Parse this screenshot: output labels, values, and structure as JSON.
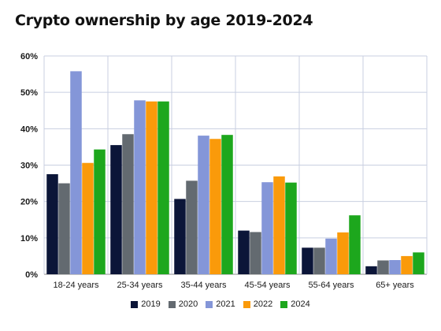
{
  "chart_data": {
    "type": "bar",
    "title": "Crypto ownership by age 2019-2024",
    "categories": [
      "18-24 years",
      "25-34 years",
      "35-44 years",
      "45-54 years",
      "55-64 years",
      "65+ years"
    ],
    "series": [
      {
        "name": "2019",
        "color": "#0b1538",
        "values": [
          27.5,
          35.5,
          20.7,
          12.0,
          7.3,
          2.2
        ]
      },
      {
        "name": "2020",
        "color": "#636a70",
        "values": [
          25.0,
          38.5,
          25.7,
          11.6,
          7.3,
          3.8
        ]
      },
      {
        "name": "2021",
        "color": "#8496d8",
        "values": [
          55.8,
          47.8,
          38.1,
          25.3,
          9.8,
          3.9
        ]
      },
      {
        "name": "2022",
        "color": "#fa9a0a",
        "values": [
          30.6,
          47.5,
          37.2,
          26.9,
          11.5,
          5.0
        ]
      },
      {
        "name": "2024",
        "color": "#1da71d",
        "values": [
          34.3,
          47.5,
          38.3,
          25.2,
          16.2,
          6.0
        ]
      }
    ],
    "yticks": [
      "0%",
      "10%",
      "20%",
      "30%",
      "40%",
      "50%",
      "60%"
    ],
    "ylim": [
      0,
      60
    ],
    "xlabel": "",
    "ylabel": "",
    "grid": true,
    "legend_position": "bottom"
  }
}
